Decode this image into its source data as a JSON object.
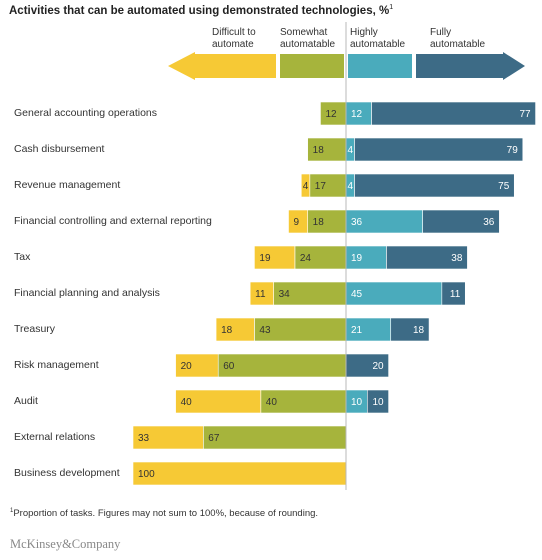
{
  "header": {
    "title": "Activities that can be automated using demonstrated technologies, %",
    "title_sup": "1"
  },
  "legend": {
    "difficult": "Difficult to\nautomate",
    "somewhat": "Somewhat\nautomatable",
    "highly": "Highly\nautomatable",
    "fully": "Fully\nautomatable"
  },
  "colors": {
    "difficult": "#f6c935",
    "somewhat": "#a6b43c",
    "highly": "#4aabbc",
    "fully": "#3d6b86"
  },
  "chart_data": {
    "type": "bar",
    "orientation": "horizontal-diverging",
    "categories": [
      "General accounting operations",
      "Cash disbursement",
      "Revenue management",
      "Financial controlling and external reporting",
      "Tax",
      "Financial planning and analysis",
      "Treasury",
      "Risk management",
      "Audit",
      "External relations",
      "Business development"
    ],
    "series": [
      {
        "name": "Difficult to automate",
        "values": [
          0,
          0,
          4,
          9,
          19,
          11,
          18,
          20,
          40,
          33,
          100
        ]
      },
      {
        "name": "Somewhat automatable",
        "values": [
          12,
          18,
          17,
          18,
          24,
          34,
          43,
          60,
          40,
          67,
          0
        ]
      },
      {
        "name": "Highly automatable",
        "values": [
          12,
          4,
          4,
          36,
          19,
          45,
          21,
          0,
          10,
          0,
          0
        ]
      },
      {
        "name": "Fully automatable",
        "values": [
          77,
          79,
          75,
          36,
          38,
          11,
          18,
          20,
          10,
          0,
          0
        ]
      }
    ]
  },
  "footer": {
    "footnote_sup": "1",
    "footnote": "Proportion of tasks. Figures may not sum to 100%, because of rounding.",
    "brand": "McKinsey&Company"
  }
}
